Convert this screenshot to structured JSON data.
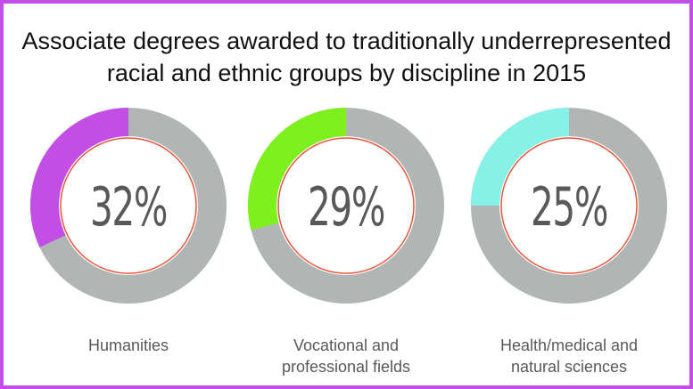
{
  "chart_data": {
    "type": "pie",
    "style": "donut",
    "title_lines": [
      "Associate degrees awarded to traditionally underrepresented",
      "racial and ethnic groups by discipline in 2015"
    ],
    "frame_color": "#c24ee6",
    "remainder_color": "#b1b5b4",
    "ring_color": "#e8543a",
    "items": [
      {
        "category_lines": [
          "Humanities"
        ],
        "value": 32,
        "label": "32%",
        "color": "#c24ee6"
      },
      {
        "category_lines": [
          "Vocational and",
          "professional fields"
        ],
        "value": 29,
        "label": "29%",
        "color": "#7ef01e"
      },
      {
        "category_lines": [
          "Health/medical and",
          "natural sciences"
        ],
        "value": 25,
        "label": "25%",
        "color": "#86f1e6"
      }
    ]
  }
}
